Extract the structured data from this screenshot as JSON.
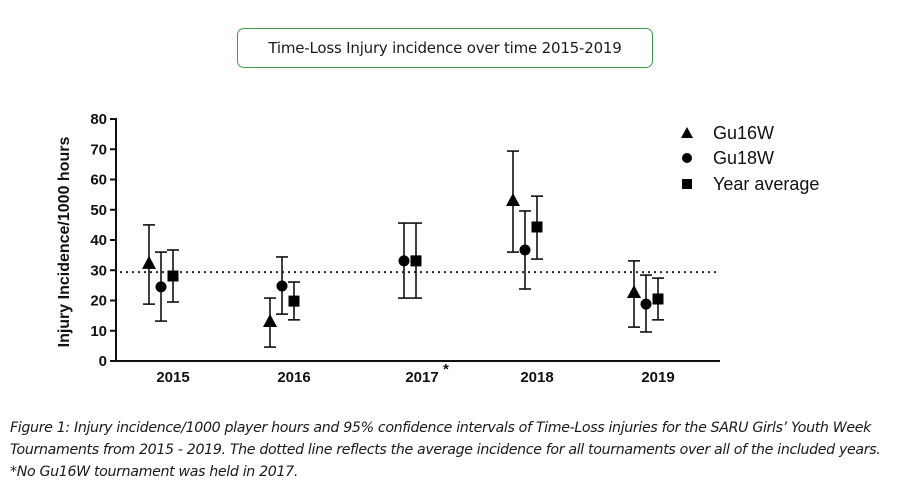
{
  "chart_data": {
    "type": "scatter",
    "title": "Time-Loss Injury incidence over time 2015-2019",
    "xlabel": "",
    "ylabel": "Injury Incidence/1000 hours",
    "ylim": [
      0,
      80
    ],
    "yticks": [
      0,
      10,
      20,
      30,
      40,
      50,
      60,
      70,
      80
    ],
    "categories": [
      "2015",
      "2016",
      "2017",
      "2018",
      "2019"
    ],
    "category_annotations": {
      "2017": "*"
    },
    "grid": false,
    "legend_position": "top-right",
    "reference_line": {
      "label": "Average incidence for all tournaments",
      "value": 29.4,
      "style": "dotted"
    },
    "series": [
      {
        "name": "Gu16W",
        "marker": "triangle",
        "values": [
          32.1,
          12.9,
          null,
          52.9,
          22.5
        ],
        "ci_lower": [
          18.8,
          4.6,
          null,
          36.0,
          11.2
        ],
        "ci_upper": [
          45.0,
          20.8,
          null,
          69.4,
          33.1
        ]
      },
      {
        "name": "Gu18W",
        "marker": "circle",
        "values": [
          24.5,
          24.8,
          33.1,
          36.7,
          18.8
        ],
        "ci_lower": [
          13.2,
          15.5,
          20.8,
          23.8,
          9.6
        ],
        "ci_upper": [
          36.0,
          34.4,
          45.6,
          49.6,
          28.4
        ]
      },
      {
        "name": "Year average",
        "marker": "square",
        "values": [
          28.1,
          19.8,
          33.1,
          44.3,
          20.5
        ],
        "ci_lower": [
          19.5,
          13.6,
          20.8,
          33.7,
          13.6
        ],
        "ci_upper": [
          36.7,
          26.1,
          45.6,
          54.5,
          27.4
        ]
      }
    ]
  },
  "title_box": {
    "text": "Time-Loss Injury incidence over time 2015-2019",
    "border_color": "#3a9a4a"
  },
  "caption": {
    "label": "Figure 1:",
    "text": " Injury incidence/1000 player hours and 95% confidence intervals of Time-Loss injuries for the SARU Girls’ Youth Week Tournaments from 2015 - 2019. The dotted line reflects the average incidence for all tournaments over all of the included years. *No Gu16W tournament was held in 2017."
  }
}
